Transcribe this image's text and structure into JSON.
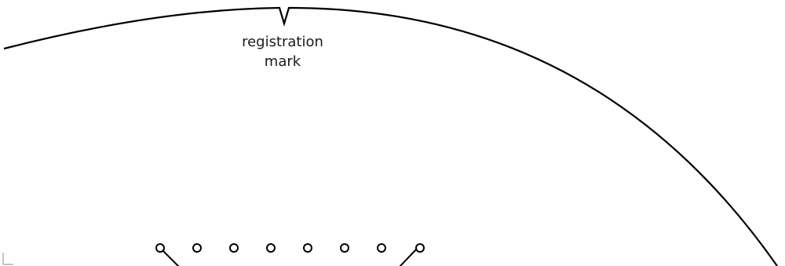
{
  "diagram": {
    "label": {
      "line1": "registration",
      "line2": "mark"
    },
    "stroke_color": "#000000",
    "crop_mark_color": "#888888",
    "hole_count": 8
  }
}
